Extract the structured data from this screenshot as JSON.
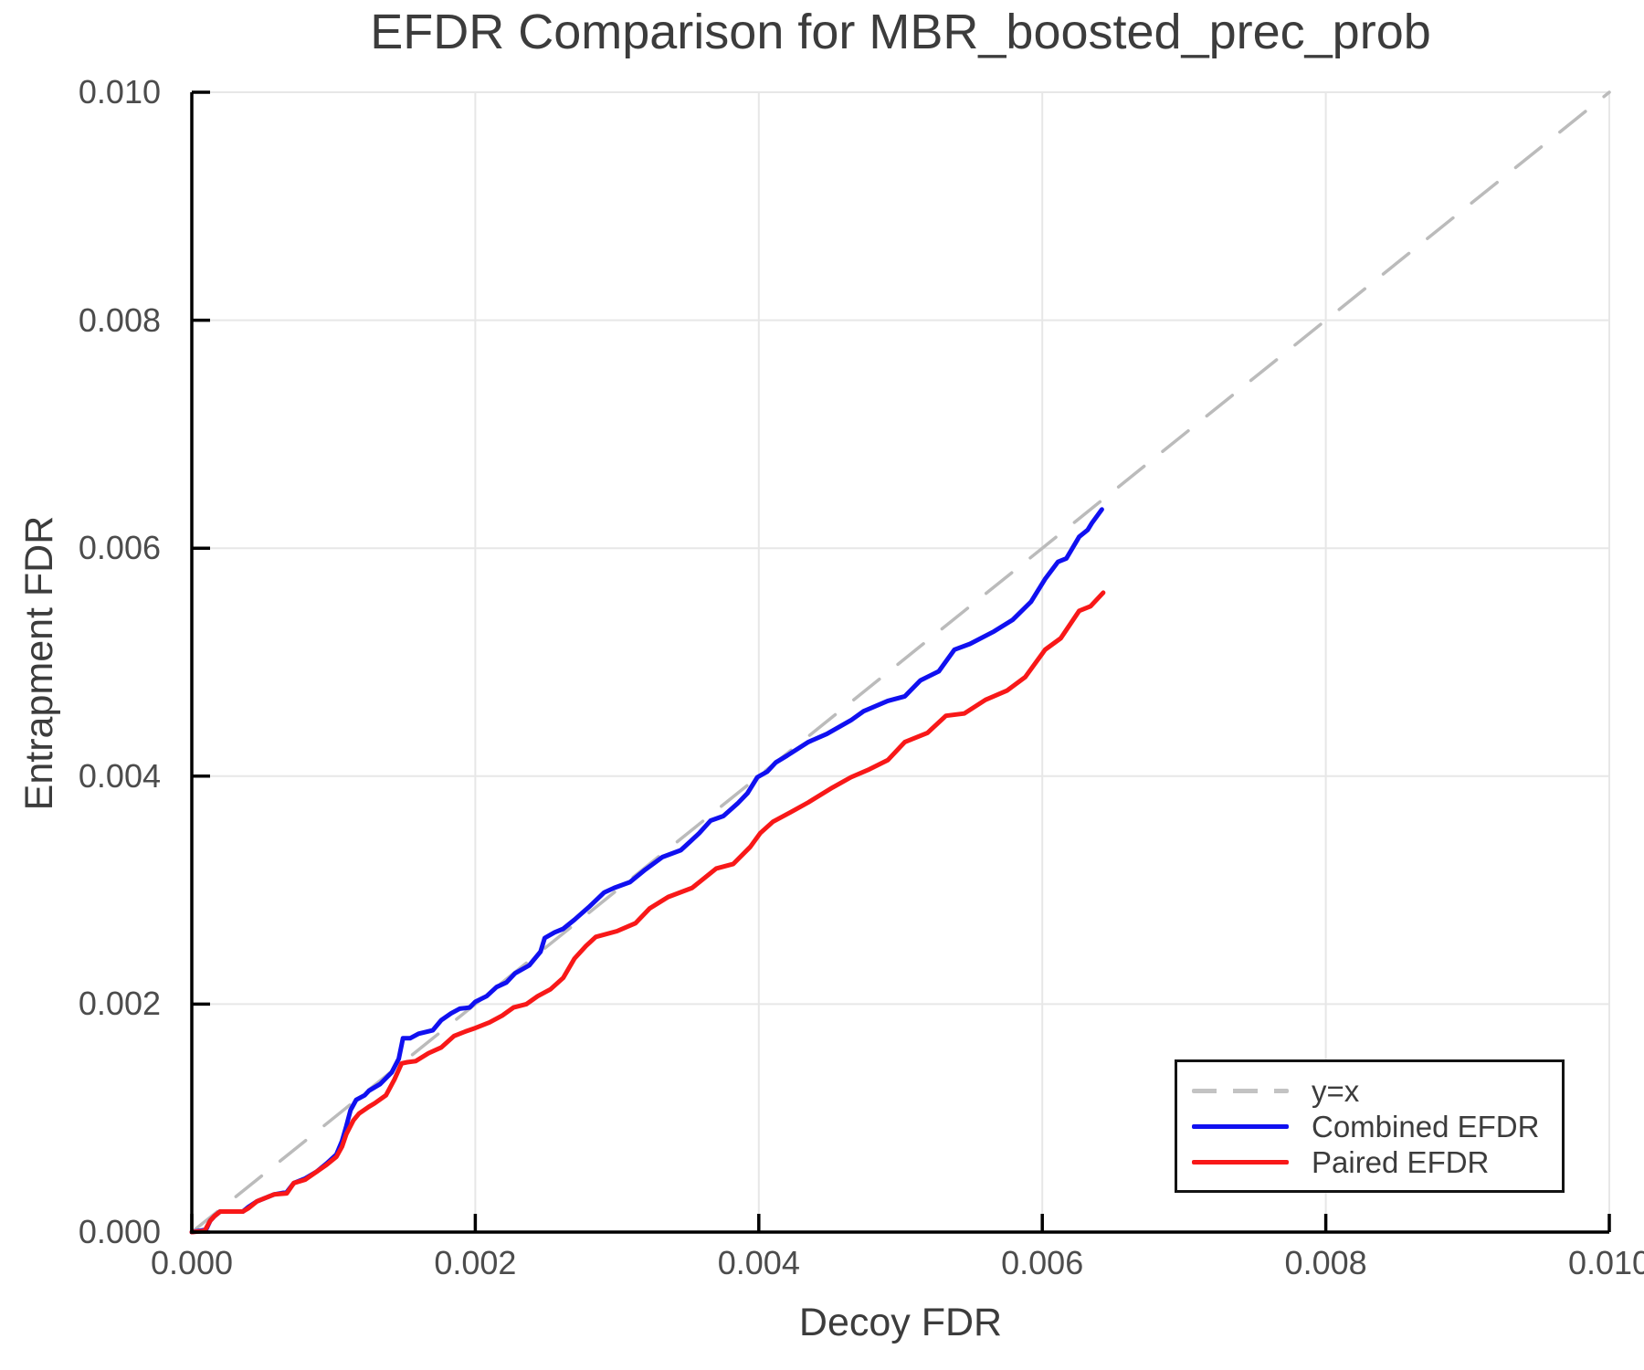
{
  "chart_data": {
    "type": "line",
    "title": "EFDR Comparison for MBR_boosted_prec_prob",
    "xlabel": "Decoy FDR",
    "ylabel": "Entrapment FDR",
    "xlim": [
      0.0,
      0.01
    ],
    "ylim": [
      0.0,
      0.01
    ],
    "grid": true,
    "legend_position": "lower right",
    "xticks": {
      "values": [
        0.0,
        0.002,
        0.004,
        0.006,
        0.008,
        0.01
      ],
      "labels": [
        "0.000",
        "0.002",
        "0.004",
        "0.006",
        "0.008",
        "0.010"
      ]
    },
    "yticks": {
      "values": [
        0.0,
        0.002,
        0.004,
        0.006,
        0.008,
        0.01
      ],
      "labels": [
        "0.000",
        "0.002",
        "0.004",
        "0.006",
        "0.008",
        "0.010"
      ]
    },
    "colors": {
      "identity": "#bbbbbb",
      "combined": "#1010f0",
      "paired": "#f81818",
      "grid": "#e7e7e7",
      "spine": "#000000",
      "text": "#3c3c3c",
      "tick_text": "#4c4c4c"
    },
    "series": [
      {
        "name": "y=x",
        "style": "dashed",
        "color": "#bbbbbb",
        "points": [
          [
            0.0,
            0.0
          ],
          [
            0.01,
            0.01
          ]
        ]
      },
      {
        "name": "Combined EFDR",
        "style": "solid",
        "color": "#1010f0",
        "points": [
          [
            0.0,
            0.0
          ],
          [
            0.0001,
            2e-05
          ],
          [
            0.00013,
            0.0001
          ],
          [
            0.00016,
            0.00014
          ],
          [
            0.0002,
            0.00018
          ],
          [
            0.00036,
            0.00018
          ],
          [
            0.0004,
            0.00022
          ],
          [
            0.00046,
            0.00027
          ],
          [
            0.0005,
            0.00029
          ],
          [
            0.00058,
            0.00033
          ],
          [
            0.00067,
            0.00035
          ],
          [
            0.00072,
            0.00043
          ],
          [
            0.0008,
            0.00047
          ],
          [
            0.00088,
            0.00053
          ],
          [
            0.00095,
            0.0006
          ],
          [
            0.00102,
            0.00068
          ],
          [
            0.00106,
            0.0008
          ],
          [
            0.00109,
            0.00093
          ],
          [
            0.00112,
            0.00107
          ],
          [
            0.00116,
            0.00116
          ],
          [
            0.00122,
            0.0012
          ],
          [
            0.00125,
            0.00124
          ],
          [
            0.00133,
            0.0013
          ],
          [
            0.00141,
            0.0014
          ],
          [
            0.00146,
            0.00152
          ],
          [
            0.00149,
            0.0017
          ],
          [
            0.00154,
            0.0017
          ],
          [
            0.0016,
            0.00174
          ],
          [
            0.0017,
            0.00177
          ],
          [
            0.00176,
            0.00186
          ],
          [
            0.00183,
            0.00192
          ],
          [
            0.00189,
            0.00196
          ],
          [
            0.00196,
            0.00197
          ],
          [
            0.002,
            0.00202
          ],
          [
            0.00208,
            0.00207
          ],
          [
            0.00215,
            0.00215
          ],
          [
            0.00222,
            0.00219
          ],
          [
            0.00228,
            0.00227
          ],
          [
            0.00238,
            0.00234
          ],
          [
            0.00246,
            0.00246
          ],
          [
            0.00249,
            0.00258
          ],
          [
            0.00256,
            0.00263
          ],
          [
            0.00262,
            0.00266
          ],
          [
            0.0027,
            0.00274
          ],
          [
            0.0028,
            0.00285
          ],
          [
            0.00291,
            0.00298
          ],
          [
            0.00298,
            0.00302
          ],
          [
            0.00309,
            0.00307
          ],
          [
            0.0032,
            0.00318
          ],
          [
            0.00332,
            0.00329
          ],
          [
            0.00345,
            0.00335
          ],
          [
            0.00352,
            0.00343
          ],
          [
            0.00358,
            0.0035
          ],
          [
            0.00366,
            0.00361
          ],
          [
            0.00375,
            0.00365
          ],
          [
            0.00385,
            0.00376
          ],
          [
            0.00392,
            0.00385
          ],
          [
            0.00399,
            0.00399
          ],
          [
            0.00406,
            0.00404
          ],
          [
            0.00412,
            0.00412
          ],
          [
            0.0042,
            0.00418
          ],
          [
            0.00435,
            0.0043
          ],
          [
            0.00448,
            0.00437
          ],
          [
            0.00465,
            0.00449
          ],
          [
            0.00474,
            0.00457
          ],
          [
            0.00491,
            0.00466
          ],
          [
            0.00503,
            0.0047
          ],
          [
            0.00514,
            0.00484
          ],
          [
            0.00527,
            0.00492
          ],
          [
            0.00538,
            0.00511
          ],
          [
            0.00549,
            0.00516
          ],
          [
            0.00566,
            0.00527
          ],
          [
            0.00579,
            0.00537
          ],
          [
            0.00592,
            0.00553
          ],
          [
            0.00602,
            0.00573
          ],
          [
            0.00611,
            0.00588
          ],
          [
            0.00617,
            0.00591
          ],
          [
            0.00626,
            0.0061
          ],
          [
            0.00632,
            0.00616
          ],
          [
            0.00635,
            0.00622
          ],
          [
            0.00642,
            0.00634
          ]
        ]
      },
      {
        "name": "Paired EFDR",
        "style": "solid",
        "color": "#f81818",
        "points": [
          [
            0.0,
            0.0
          ],
          [
            9e-05,
            1e-05
          ],
          [
            0.00013,
            0.0001
          ],
          [
            0.00016,
            0.00014
          ],
          [
            0.0002,
            0.00018
          ],
          [
            0.00036,
            0.00018
          ],
          [
            0.0004,
            0.00021
          ],
          [
            0.00046,
            0.00027
          ],
          [
            0.0005,
            0.00029
          ],
          [
            0.00058,
            0.00033
          ],
          [
            0.00067,
            0.00034
          ],
          [
            0.00072,
            0.00043
          ],
          [
            0.0008,
            0.00046
          ],
          [
            0.00088,
            0.00053
          ],
          [
            0.00095,
            0.00059
          ],
          [
            0.00102,
            0.00066
          ],
          [
            0.00106,
            0.00075
          ],
          [
            0.00109,
            0.00086
          ],
          [
            0.00114,
            0.00098
          ],
          [
            0.00118,
            0.00104
          ],
          [
            0.00125,
            0.0011
          ],
          [
            0.00129,
            0.00113
          ],
          [
            0.00137,
            0.0012
          ],
          [
            0.00143,
            0.00134
          ],
          [
            0.00148,
            0.00148
          ],
          [
            0.00152,
            0.00149
          ],
          [
            0.00158,
            0.0015
          ],
          [
            0.00167,
            0.00157
          ],
          [
            0.00176,
            0.00162
          ],
          [
            0.00185,
            0.00172
          ],
          [
            0.00193,
            0.00176
          ],
          [
            0.002,
            0.00179
          ],
          [
            0.0021,
            0.00184
          ],
          [
            0.00219,
            0.0019
          ],
          [
            0.00227,
            0.00197
          ],
          [
            0.00236,
            0.002
          ],
          [
            0.00244,
            0.00207
          ],
          [
            0.00253,
            0.00213
          ],
          [
            0.00262,
            0.00223
          ],
          [
            0.0027,
            0.0024
          ],
          [
            0.00278,
            0.00251
          ],
          [
            0.00285,
            0.00259
          ],
          [
            0.003,
            0.00264
          ],
          [
            0.00313,
            0.00271
          ],
          [
            0.00323,
            0.00284
          ],
          [
            0.00336,
            0.00294
          ],
          [
            0.00353,
            0.00302
          ],
          [
            0.0037,
            0.00319
          ],
          [
            0.00382,
            0.00323
          ],
          [
            0.00394,
            0.00338
          ],
          [
            0.00401,
            0.0035
          ],
          [
            0.0041,
            0.0036
          ],
          [
            0.00422,
            0.00368
          ],
          [
            0.00435,
            0.00377
          ],
          [
            0.00452,
            0.0039
          ],
          [
            0.00465,
            0.00399
          ],
          [
            0.00478,
            0.00406
          ],
          [
            0.00491,
            0.00414
          ],
          [
            0.00503,
            0.0043
          ],
          [
            0.00519,
            0.00438
          ],
          [
            0.00532,
            0.00453
          ],
          [
            0.00545,
            0.00455
          ],
          [
            0.0056,
            0.00467
          ],
          [
            0.00575,
            0.00475
          ],
          [
            0.00588,
            0.00487
          ],
          [
            0.00602,
            0.00511
          ],
          [
            0.00613,
            0.00521
          ],
          [
            0.00626,
            0.00545
          ],
          [
            0.00634,
            0.00549
          ],
          [
            0.00643,
            0.00561
          ]
        ]
      }
    ]
  }
}
